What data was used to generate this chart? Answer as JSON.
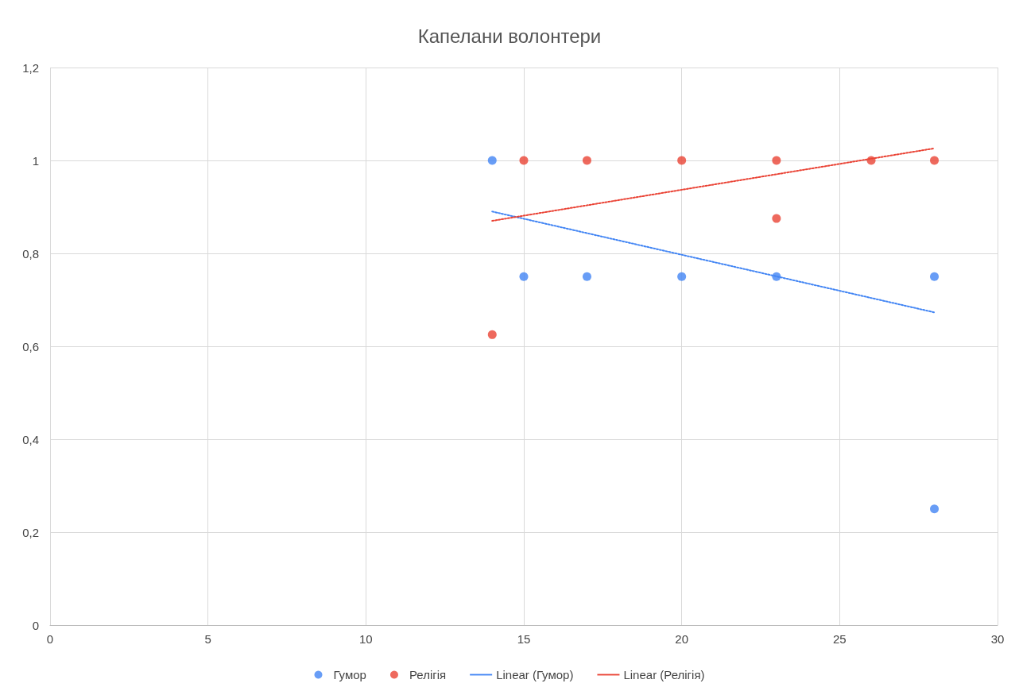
{
  "chart_data": {
    "type": "scatter",
    "title": "Капелани волонтери",
    "xlim": [
      0,
      30
    ],
    "xticks": [
      0,
      5,
      10,
      15,
      20,
      25,
      30
    ],
    "ylim": [
      0,
      1.2
    ],
    "yticks": [
      0,
      {
        "value": 0.2,
        "label": "0,2"
      },
      {
        "value": 0.4,
        "label": "0,4"
      },
      {
        "value": 0.6,
        "label": "0,6"
      },
      {
        "value": 0.8,
        "label": "0,8"
      },
      1,
      {
        "value": 1.2,
        "label": "1,2"
      }
    ],
    "grid": true,
    "legend": "bottom",
    "marker": "circle",
    "series": [
      {
        "name": "Гумор",
        "color": "#4285f4",
        "x": [
          14,
          15,
          17,
          20,
          23,
          28,
          28
        ],
        "values": [
          1,
          0.75,
          0.75,
          0.75,
          0.75,
          0.75,
          0.25
        ]
      },
      {
        "name": "Релігія",
        "color": "#ea4335",
        "x": [
          14,
          15,
          17,
          20,
          23,
          23,
          26,
          28
        ],
        "values": [
          0.625,
          1,
          1,
          1,
          1,
          0.875,
          1,
          1
        ]
      },
      {
        "name": "Linear (Гумор)",
        "type": "line",
        "marker": "none",
        "line_style": "dotted",
        "color": "#4285f4",
        "x": [
          14,
          28
        ],
        "values": [
          0.89,
          0.673
        ]
      },
      {
        "name": "Linear (Релігія)",
        "type": "line",
        "marker": "none",
        "line_style": "dotted",
        "color": "#ea4335",
        "x": [
          14,
          28
        ],
        "values": [
          0.87,
          1.026
        ]
      }
    ]
  }
}
